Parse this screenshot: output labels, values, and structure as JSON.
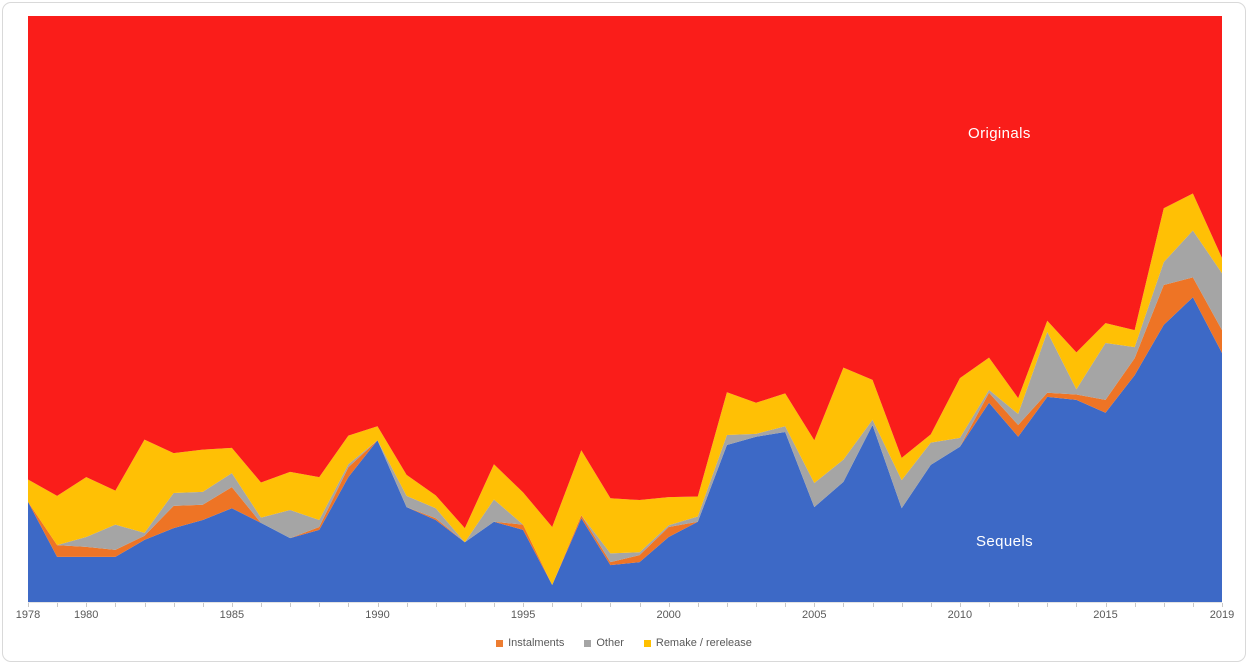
{
  "labels": {
    "originals": "Originals",
    "sequels": "Sequels"
  },
  "legend": {
    "items": [
      {
        "label": "Instalments",
        "color": "#ed7d31"
      },
      {
        "label": "Other",
        "color": "#a5a5a5"
      },
      {
        "label": "Remake / rerelease",
        "color": "#ffc000"
      }
    ]
  },
  "axis": {
    "x_tick_labels": [
      "1978",
      "1980",
      "1985",
      "1990",
      "1995",
      "2000",
      "2005",
      "2010",
      "2015",
      "2019"
    ],
    "tick_color": "#c9c9c9",
    "label_color": "#595959"
  },
  "colors": {
    "sequels_blue": "#3d69c6",
    "instalments_orange": "#ee7425",
    "other_gray": "#a5a5a5",
    "remake_yellow": "#ffc005",
    "originals_red": "#fa1d1a"
  },
  "chart_data": {
    "type": "area",
    "stacking": "percent",
    "title": "",
    "xlabel": "",
    "ylabel": "",
    "ylim": [
      0,
      100
    ],
    "x_range": [
      1978,
      2019
    ],
    "grid": false,
    "legend_position": "bottom-center",
    "x": [
      1978,
      1979,
      1980,
      1981,
      1982,
      1983,
      1984,
      1985,
      1986,
      1987,
      1988,
      1989,
      1990,
      1991,
      1992,
      1993,
      1994,
      1995,
      1996,
      1997,
      1998,
      1999,
      2000,
      2001,
      2002,
      2003,
      2004,
      2005,
      2006,
      2007,
      2008,
      2009,
      2010,
      2011,
      2012,
      2013,
      2014,
      2015,
      2016,
      2017,
      2018,
      2019
    ],
    "series": [
      {
        "name": "Sequels",
        "color": "#3d69c6",
        "values": [
          17.1,
          7.7,
          7.7,
          7.7,
          10.6,
          12.6,
          14.0,
          16.0,
          13.5,
          10.9,
          12.3,
          21.3,
          27.6,
          16.2,
          14.0,
          10.2,
          13.7,
          12.3,
          2.9,
          14.3,
          6.3,
          6.8,
          11.1,
          13.7,
          26.8,
          28.2,
          29.0,
          16.2,
          20.5,
          30.2,
          16.0,
          23.4,
          26.5,
          34.0,
          28.2,
          35.0,
          34.5,
          32.3,
          38.7,
          47.3,
          52.0,
          42.5
        ]
      },
      {
        "name": "Instalments",
        "color": "#ee7425",
        "values": [
          0,
          2.0,
          1.7,
          1.2,
          0.7,
          3.8,
          2.6,
          3.6,
          0,
          0,
          0.5,
          1.7,
          0,
          0,
          0.3,
          0,
          0,
          0.9,
          0,
          0.5,
          0.5,
          1.2,
          1.7,
          0,
          0,
          0,
          0,
          0,
          0,
          0,
          0,
          0,
          0,
          1.7,
          2.0,
          0.7,
          0.9,
          2.2,
          2.9,
          6.8,
          3.4,
          3.9
        ]
      },
      {
        "name": "Other",
        "color": "#a5a5a5",
        "values": [
          0,
          0,
          1.7,
          4.3,
          0.5,
          2.2,
          2.2,
          2.4,
          0.9,
          4.8,
          1.2,
          0.5,
          0,
          1.9,
          1.7,
          0,
          3.8,
          0,
          0,
          0,
          1.5,
          0.5,
          0.3,
          0.9,
          1.7,
          0.5,
          1.0,
          4.1,
          3.8,
          0.9,
          4.8,
          3.8,
          1.5,
          0.5,
          1.9,
          10.4,
          0.9,
          9.7,
          1.9,
          3.9,
          8.0,
          9.7
        ]
      },
      {
        "name": "Remake / rerelease",
        "color": "#ffc005",
        "values": [
          3.8,
          8.4,
          10.2,
          5.8,
          15.9,
          6.8,
          7.2,
          4.3,
          6.0,
          6.5,
          7.3,
          4.9,
          2.4,
          3.6,
          2.2,
          2.4,
          6.0,
          5.5,
          9.9,
          11.1,
          9.4,
          8.9,
          4.8,
          3.4,
          7.3,
          5.3,
          5.6,
          7.3,
          15.7,
          6.8,
          3.8,
          1.4,
          10.2,
          5.5,
          2.7,
          1.9,
          6.3,
          3.4,
          2.9,
          9.2,
          6.3,
          2.6
        ]
      },
      {
        "name": "Originals",
        "color": "#fa1d1a",
        "values": [
          79.1,
          81.9,
          78.7,
          81.0,
          72.3,
          74.6,
          74.0,
          73.7,
          79.6,
          77.8,
          78.7,
          71.6,
          70.0,
          78.3,
          81.8,
          87.4,
          76.5,
          81.3,
          87.2,
          74.1,
          82.3,
          82.6,
          82.1,
          82.0,
          64.2,
          66.0,
          64.4,
          72.4,
          60.0,
          62.1,
          75.4,
          71.4,
          61.8,
          58.3,
          65.2,
          52.0,
          57.4,
          52.4,
          53.6,
          32.8,
          30.3,
          41.3
        ]
      }
    ]
  }
}
